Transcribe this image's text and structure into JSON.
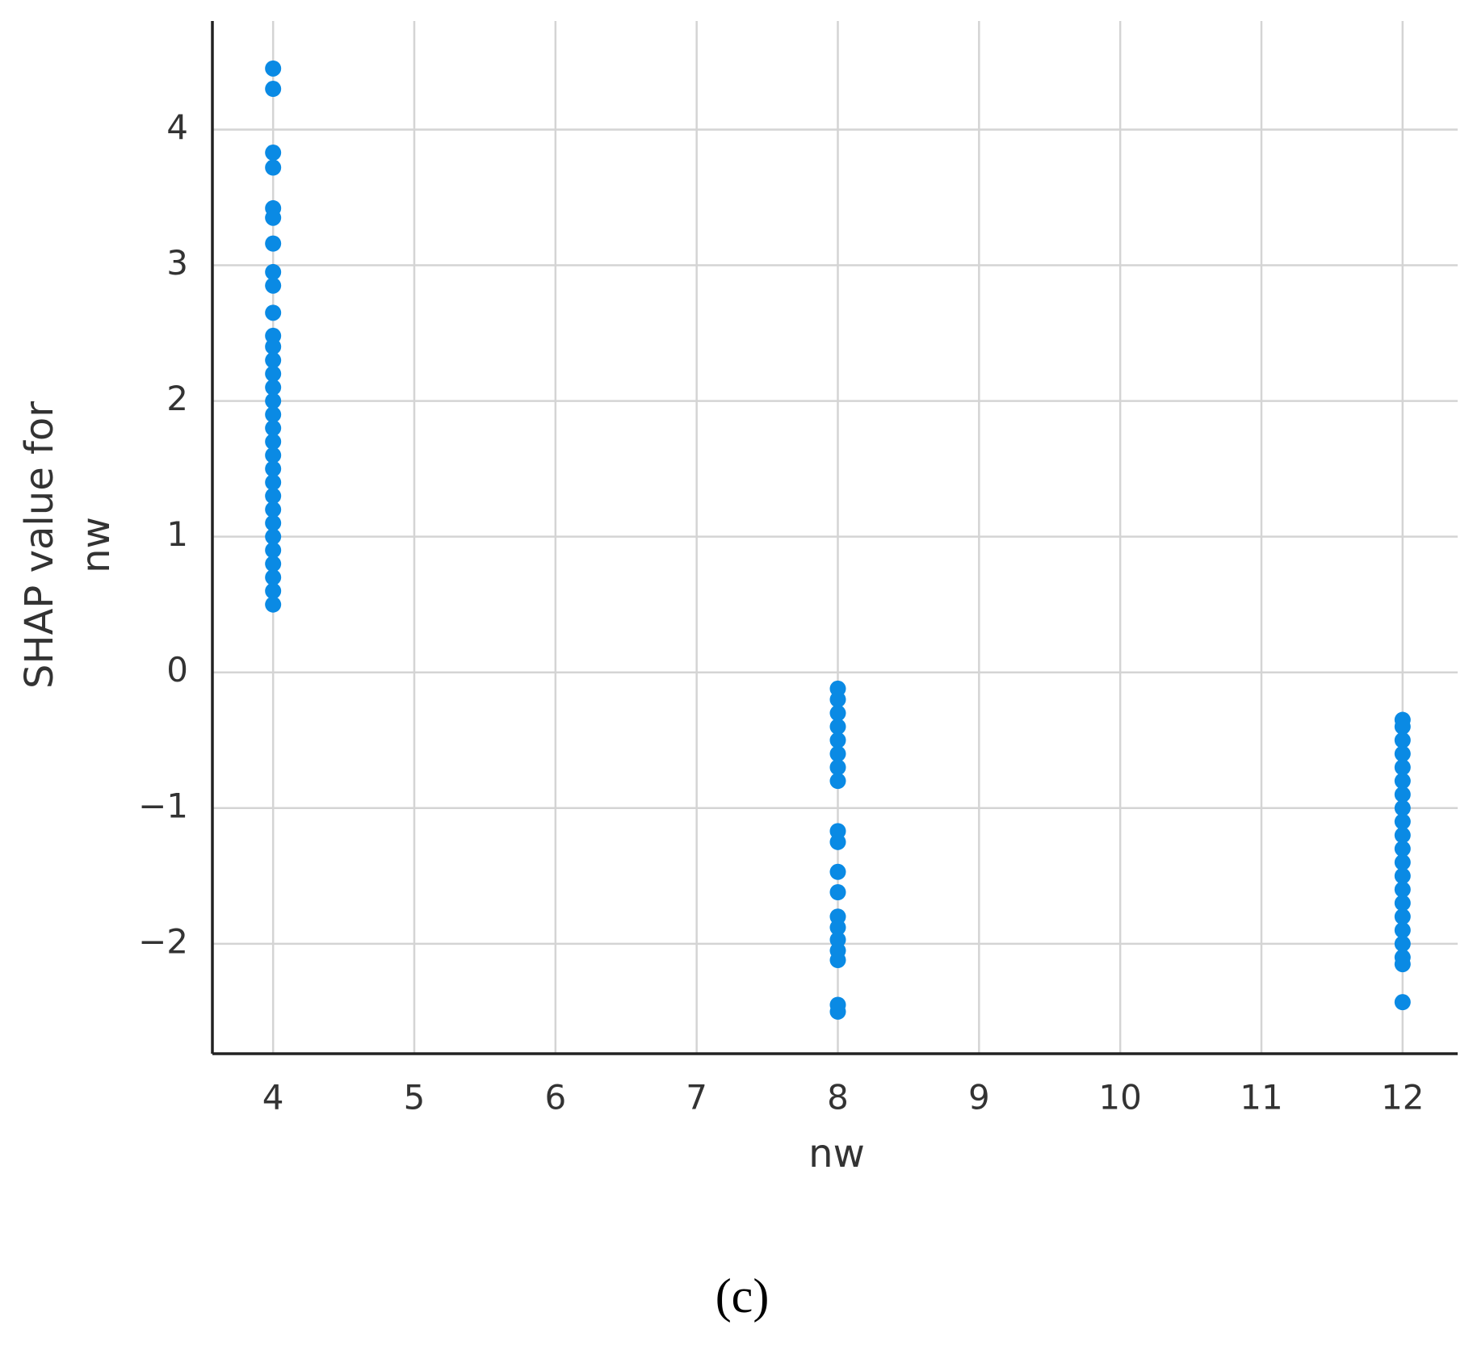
{
  "chart_data": {
    "type": "scatter",
    "xlabel": "nw",
    "ylabel": [
      "SHAP value for",
      "nw"
    ],
    "caption": "(c)",
    "x": [
      4,
      4,
      4,
      4,
      4,
      4,
      4,
      4,
      4,
      4,
      4,
      4,
      4,
      4,
      4,
      4,
      4,
      4,
      4,
      4,
      4,
      4,
      4,
      4,
      4,
      4,
      4,
      4,
      4,
      4,
      4,
      8,
      8,
      8,
      8,
      8,
      8,
      8,
      8,
      8,
      8,
      8,
      8,
      8,
      8,
      8,
      8,
      8,
      8,
      8,
      12,
      12,
      12,
      12,
      12,
      12,
      12,
      12,
      12,
      12,
      12,
      12,
      12,
      12,
      12,
      12,
      12,
      12,
      12,
      12,
      12
    ],
    "values": [
      4.45,
      4.3,
      3.83,
      3.72,
      3.42,
      3.35,
      3.16,
      2.95,
      2.85,
      2.65,
      2.48,
      2.4,
      2.3,
      2.2,
      2.1,
      2.0,
      1.9,
      1.8,
      1.7,
      1.6,
      1.5,
      1.4,
      1.3,
      1.2,
      1.1,
      1.0,
      0.9,
      0.8,
      0.7,
      0.6,
      0.5,
      -0.12,
      -0.2,
      -0.3,
      -0.4,
      -0.5,
      -0.6,
      -0.7,
      -0.8,
      -1.17,
      -1.25,
      -1.47,
      -1.62,
      -1.8,
      -1.88,
      -1.97,
      -2.05,
      -2.12,
      -2.45,
      -2.5,
      -0.35,
      -0.4,
      -0.5,
      -0.6,
      -0.7,
      -0.8,
      -0.9,
      -1.0,
      -1.1,
      -1.2,
      -1.3,
      -1.4,
      -1.5,
      -1.6,
      -1.7,
      -1.8,
      -1.9,
      -2.0,
      -2.1,
      -2.15,
      -2.43
    ],
    "color": "#0a8ae4",
    "xlim": [
      3.57,
      12.39
    ],
    "ylim": [
      -2.81,
      4.8
    ],
    "xticks": [
      4,
      5,
      6,
      7,
      8,
      9,
      10,
      11,
      12
    ],
    "yticks": [
      {
        "value": -2,
        "label": "−2"
      },
      {
        "value": -1,
        "label": "−1"
      },
      0,
      1,
      2,
      3,
      4
    ],
    "grid": true
  }
}
